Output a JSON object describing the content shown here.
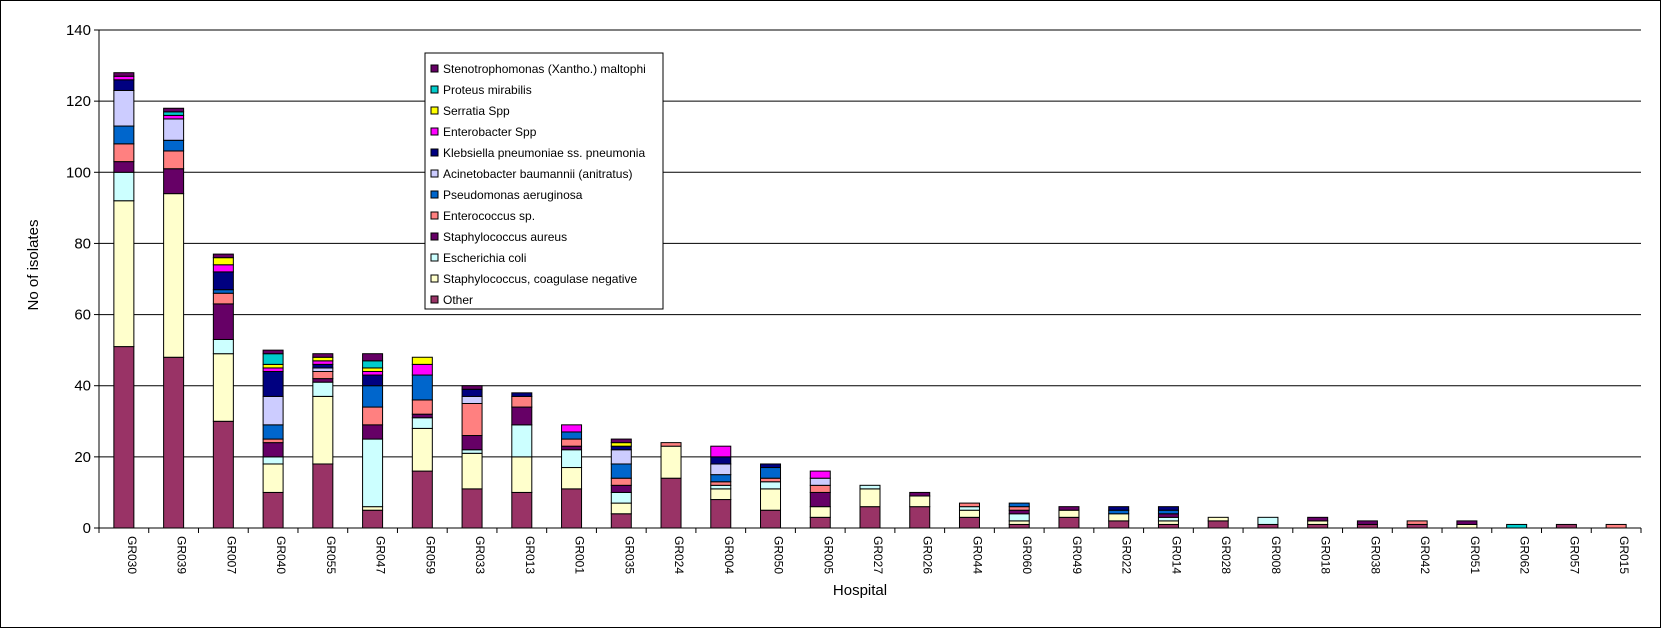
{
  "chart_data": {
    "type": "bar",
    "stacked": true,
    "title": "",
    "xlabel": "Hospital",
    "ylabel": "No of isolates",
    "ylim": [
      0,
      140
    ],
    "yticks": [
      0,
      20,
      40,
      60,
      80,
      100,
      120,
      140
    ],
    "grid": true,
    "legend_position": "top-center",
    "categories": [
      "GR030",
      "GR039",
      "GR007",
      "GR040",
      "GR055",
      "GR047",
      "GR059",
      "GR033",
      "GR013",
      "GR001",
      "GR035",
      "GR024",
      "GR004",
      "GR050",
      "GR005",
      "GR027",
      "GR026",
      "GR044",
      "GR060",
      "GR049",
      "GR022",
      "GR014",
      "GR028",
      "GR008",
      "GR018",
      "GR038",
      "GR042",
      "GR051",
      "GR062",
      "GR057",
      "GR015"
    ],
    "series": [
      {
        "name": "Other",
        "color": "#993366",
        "values": [
          51,
          48,
          30,
          10,
          18,
          5,
          16,
          11,
          10,
          11,
          4,
          14,
          8,
          5,
          3,
          6,
          6,
          3,
          1,
          3,
          2,
          1,
          2,
          1,
          1,
          1,
          1,
          0,
          0,
          1,
          0
        ]
      },
      {
        "name": "Staphylococcus, coagulase negative",
        "color": "#FFFFCC",
        "values": [
          41,
          46,
          19,
          8,
          19,
          1,
          12,
          10,
          10,
          6,
          3,
          9,
          3,
          6,
          3,
          5,
          3,
          2,
          1,
          2,
          2,
          1,
          1,
          0,
          1,
          0,
          0,
          1,
          0,
          0,
          0
        ]
      },
      {
        "name": "Escherichia coli",
        "color": "#CCFFFF",
        "values": [
          8,
          0,
          4,
          2,
          4,
          19,
          3,
          1,
          9,
          5,
          3,
          0,
          1,
          2,
          0,
          1,
          0,
          1,
          2,
          0,
          0,
          1,
          0,
          2,
          0,
          0,
          0,
          0,
          0,
          0,
          0
        ]
      },
      {
        "name": "Staphylococcus aureus",
        "color": "#660066",
        "values": [
          3,
          7,
          10,
          4,
          1,
          4,
          1,
          4,
          5,
          1,
          2,
          0,
          0,
          0,
          4,
          0,
          1,
          0,
          1,
          1,
          0,
          1,
          0,
          0,
          1,
          1,
          0,
          1,
          0,
          0,
          0
        ]
      },
      {
        "name": "Enterococcus sp.",
        "color": "#FF8080",
        "values": [
          5,
          5,
          3,
          1,
          2,
          5,
          4,
          9,
          3,
          2,
          2,
          1,
          1,
          1,
          2,
          0,
          0,
          1,
          1,
          0,
          0,
          0,
          0,
          0,
          0,
          0,
          1,
          0,
          0,
          0,
          1
        ]
      },
      {
        "name": "Pseudomonas aeruginosa",
        "color": "#0066CC",
        "values": [
          5,
          3,
          1,
          4,
          0,
          6,
          7,
          0,
          0,
          2,
          4,
          0,
          2,
          3,
          0,
          0,
          0,
          0,
          1,
          0,
          1,
          1,
          0,
          0,
          0,
          0,
          0,
          0,
          0,
          0,
          0
        ]
      },
      {
        "name": "Acinetobacter baumannii (anitratus)",
        "color": "#CCCCFF",
        "values": [
          10,
          6,
          0,
          8,
          1,
          0,
          0,
          2,
          0,
          0,
          4,
          0,
          3,
          0,
          2,
          0,
          0,
          0,
          0,
          0,
          0,
          0,
          0,
          0,
          0,
          0,
          0,
          0,
          0,
          0,
          0
        ]
      },
      {
        "name": "Klebsiella pneumoniae ss. pneumonia",
        "color": "#000080",
        "values": [
          3,
          0,
          5,
          7,
          1,
          3,
          0,
          2,
          1,
          0,
          1,
          0,
          2,
          1,
          0,
          0,
          0,
          0,
          0,
          0,
          1,
          1,
          0,
          0,
          0,
          0,
          0,
          0,
          0,
          0,
          0
        ]
      },
      {
        "name": "Enterobacter Spp",
        "color": "#FF00FF",
        "values": [
          1,
          1,
          2,
          1,
          1,
          1,
          3,
          0,
          0,
          2,
          0,
          0,
          3,
          0,
          2,
          0,
          0,
          0,
          0,
          0,
          0,
          0,
          0,
          0,
          0,
          0,
          0,
          0,
          0,
          0,
          0
        ]
      },
      {
        "name": "Serratia Spp",
        "color": "#FFFF00",
        "values": [
          0,
          0,
          2,
          1,
          1,
          1,
          2,
          0,
          0,
          0,
          1,
          0,
          0,
          0,
          0,
          0,
          0,
          0,
          0,
          0,
          0,
          0,
          0,
          0,
          0,
          0,
          0,
          0,
          0,
          0,
          0
        ]
      },
      {
        "name": "Proteus mirabilis",
        "color": "#00CCCC",
        "values": [
          0,
          1,
          0,
          3,
          0,
          2,
          0,
          0,
          0,
          0,
          0,
          0,
          0,
          0,
          0,
          0,
          0,
          0,
          0,
          0,
          0,
          0,
          0,
          0,
          0,
          0,
          0,
          0,
          1,
          0,
          0
        ]
      },
      {
        "name": "Stenotrophomonas (Xantho.) maltophi",
        "color": "#660066",
        "values": [
          1,
          1,
          1,
          1,
          1,
          2,
          0,
          1,
          0,
          0,
          1,
          0,
          0,
          0,
          0,
          0,
          0,
          0,
          0,
          0,
          0,
          0,
          0,
          0,
          0,
          0,
          0,
          0,
          0,
          0,
          0
        ]
      }
    ]
  }
}
